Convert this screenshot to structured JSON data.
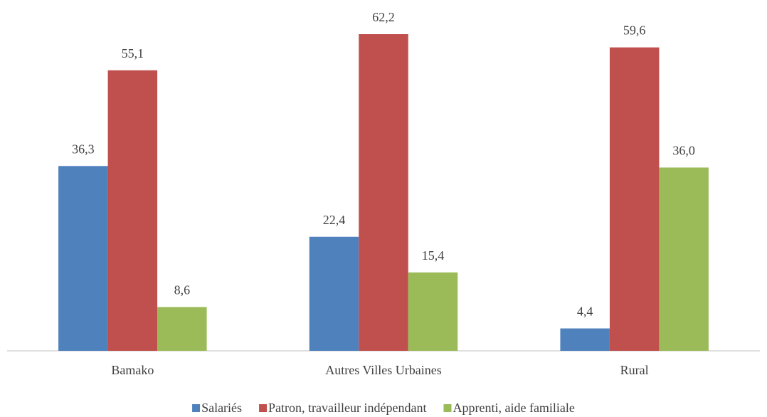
{
  "chart_data": {
    "type": "bar",
    "categories": [
      "Bamako",
      "Autres Villes Urbaines",
      "Rural"
    ],
    "series": [
      {
        "name": "Salariés",
        "color": "#4f81bd",
        "values": [
          36.3,
          22.4,
          4.4
        ],
        "value_labels": [
          "36,3",
          "22,4",
          "4,4"
        ]
      },
      {
        "name": "Patron, travailleur indépendant",
        "color": "#c0504d",
        "values": [
          55.1,
          62.2,
          59.6
        ],
        "value_labels": [
          "55,1",
          "62,2",
          "59,6"
        ]
      },
      {
        "name": "Apprenti, aide familiale",
        "color": "#9bbb59",
        "values": [
          8.6,
          15.4,
          36.0
        ],
        "value_labels": [
          "8,6",
          "15,4",
          "36,0"
        ]
      }
    ],
    "legend": "bottom"
  }
}
